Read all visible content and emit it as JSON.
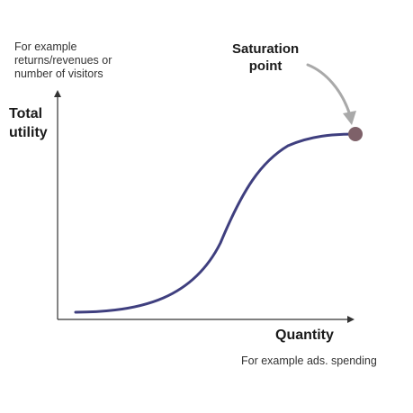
{
  "y_axis": {
    "note_lines": [
      "For example",
      "returns/revenues or",
      "number of visitors"
    ],
    "label_lines": [
      "Total",
      "utility"
    ]
  },
  "x_axis": {
    "label": "Quantity",
    "note": "For example ads. spending"
  },
  "saturation": {
    "label_lines": [
      "Saturation",
      "point"
    ]
  },
  "colors": {
    "curve": "#3f3f7f",
    "axis": "#333333",
    "point": "#7e6169",
    "arrow": "#a9a9a9"
  }
}
